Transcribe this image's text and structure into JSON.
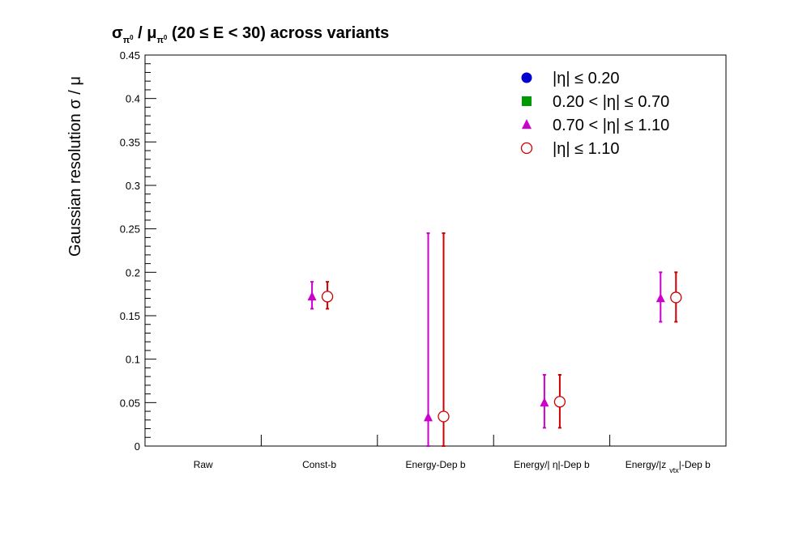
{
  "chart_data": {
    "type": "scatter",
    "title_parts": {
      "sigma": "σ",
      "pi_sub": "π",
      "pi_sup": "0",
      "slash": " / ",
      "mu": "μ",
      "tail": " (20 ≤ E < 30) across variants"
    },
    "ylabel": "Gaussian resolution  σ / μ",
    "xlabel": "",
    "ylim": [
      0,
      0.45
    ],
    "yticks": [
      "0",
      "0.05",
      "0.1",
      "0.15",
      "0.2",
      "0.25",
      "0.3",
      "0.35",
      "0.4",
      "0.45"
    ],
    "categories": [
      {
        "text": "Raw"
      },
      {
        "text": "Const-b"
      },
      {
        "text": "Energy-Dep b"
      },
      {
        "text": "Energy/| η|-Dep b"
      },
      {
        "pre": "Energy/|z",
        "sub": "vtx",
        "post": "|-Dep b"
      }
    ],
    "grid": false,
    "legend_position": "top-right",
    "series": [
      {
        "name": "|η| ≤ 0.20",
        "marker": "circle-filled",
        "color": "#0000cc",
        "points": []
      },
      {
        "name": "0.20 < |η| ≤ 0.70",
        "marker": "square-filled",
        "color": "#009900",
        "points": []
      },
      {
        "name": "0.70 < |η| ≤ 1.10",
        "marker": "triangle-filled",
        "color": "#cc00cc",
        "points": [
          {
            "category": "Const-b",
            "y": 0.172,
            "err_low": 0.014,
            "err_high": 0.017
          },
          {
            "category": "Energy-Dep b",
            "y": 0.033,
            "err_low": 0.033,
            "err_high": 0.212
          },
          {
            "category": "Energy/| η|-Dep b",
            "y": 0.05,
            "err_low": 0.029,
            "err_high": 0.032
          },
          {
            "category": "Energy/|z vtx|-Dep b",
            "y": 0.17,
            "err_low": 0.027,
            "err_high": 0.03
          }
        ]
      },
      {
        "name": "|η| ≤ 1.10",
        "marker": "circle-open",
        "color": "#cc0000",
        "points": [
          {
            "category": "Const-b",
            "y": 0.172,
            "err_low": 0.014,
            "err_high": 0.017
          },
          {
            "category": "Energy-Dep b",
            "y": 0.034,
            "err_low": 0.034,
            "err_high": 0.211
          },
          {
            "category": "Energy/| η|-Dep b",
            "y": 0.051,
            "err_low": 0.03,
            "err_high": 0.031
          },
          {
            "category": "Energy/|z vtx|-Dep b",
            "y": 0.171,
            "err_low": 0.028,
            "err_high": 0.029
          }
        ]
      }
    ]
  }
}
